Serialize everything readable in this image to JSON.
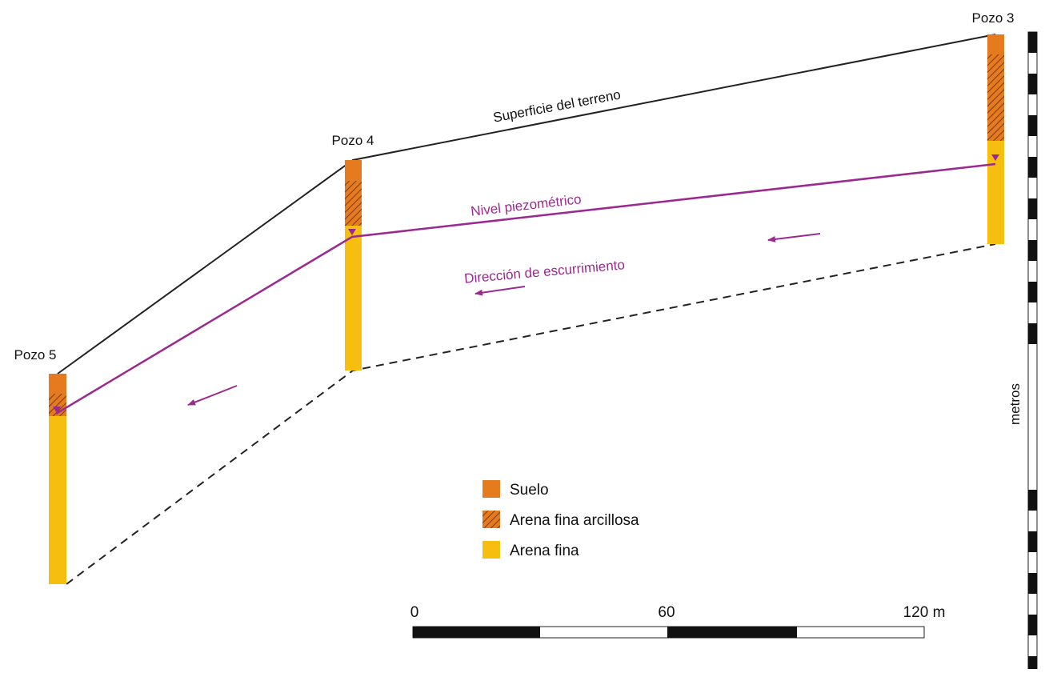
{
  "wells": [
    {
      "label": "Pozo 5"
    },
    {
      "label": "Pozo 4"
    },
    {
      "label": "Pozo 3"
    }
  ],
  "lines": {
    "surface": "Superficie del terreno",
    "piezometric": "Nivel piezométrico",
    "flow": "Dirección de escurrimiento"
  },
  "legend": [
    {
      "label": "Suelo"
    },
    {
      "label": "Arena fina arcillosa"
    },
    {
      "label": "Arena fina"
    }
  ],
  "scale_bar": {
    "labels": [
      "0",
      "60",
      "120 m"
    ]
  },
  "vertical_scale": {
    "label": "metros"
  }
}
